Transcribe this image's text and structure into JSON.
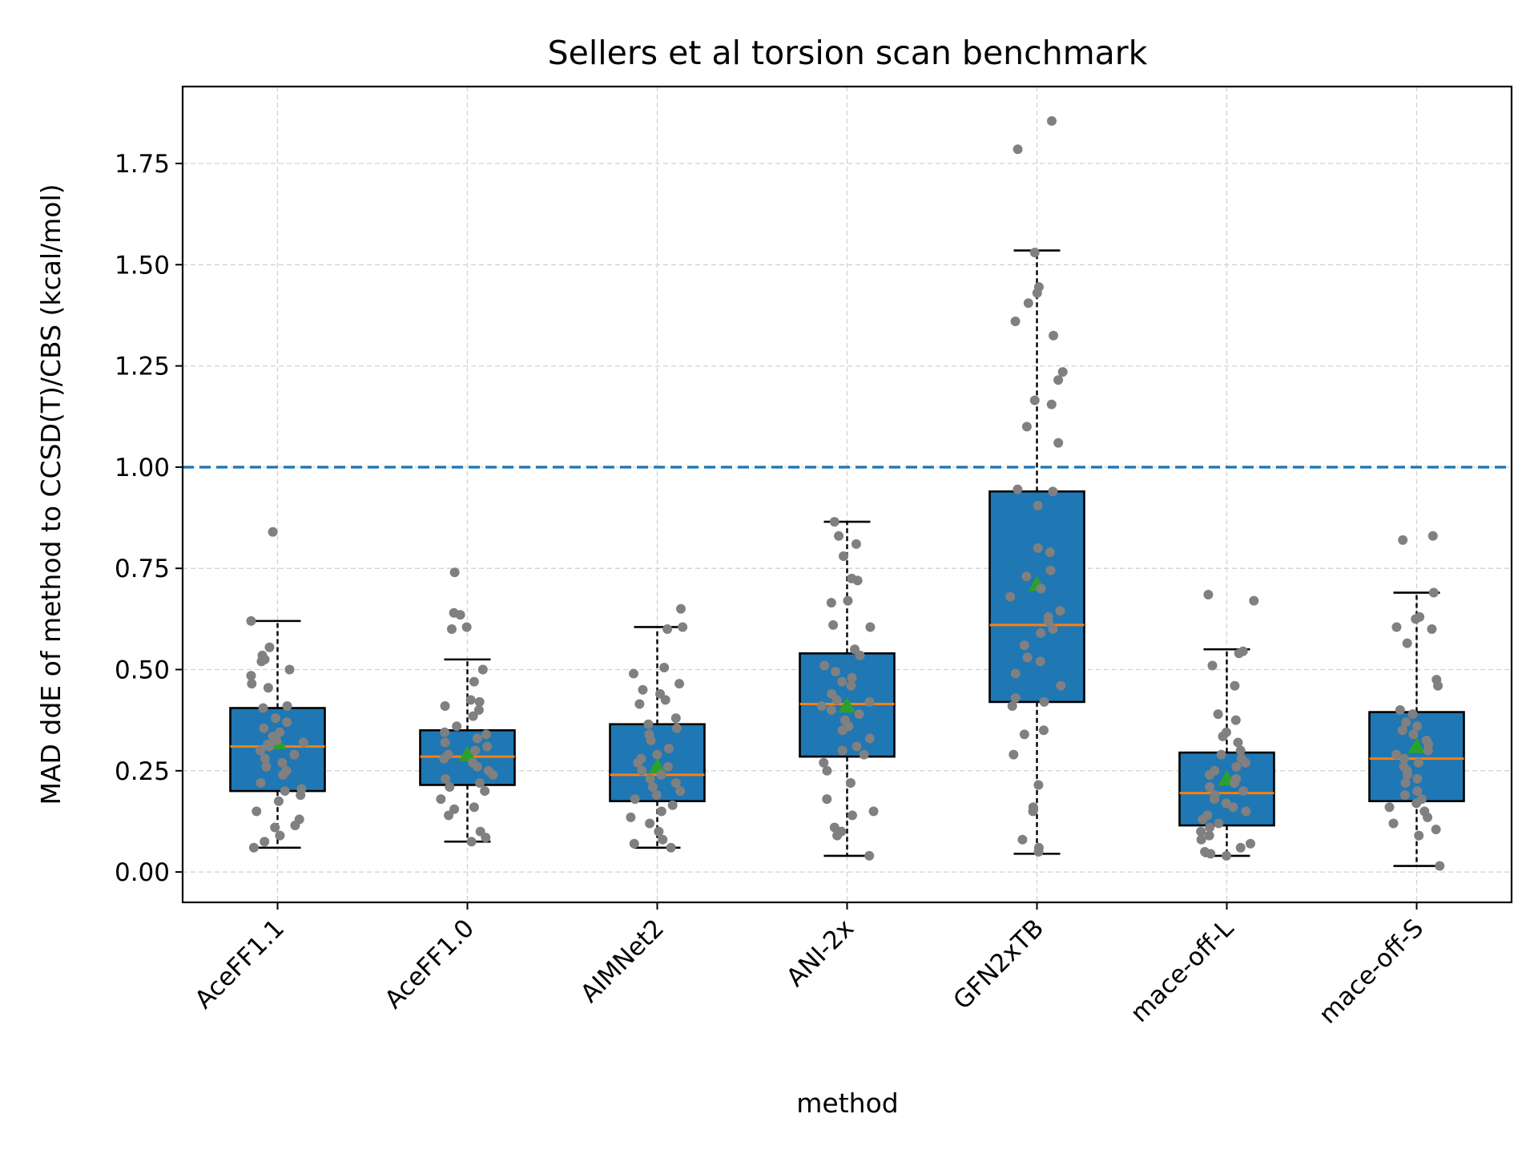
{
  "chart_data": {
    "type": "box",
    "title": "Sellers et al torsion scan benchmark",
    "xlabel": "method",
    "ylabel": "MAD ddE of method to CCSD(T)/CBS (kcal/mol)",
    "ylim": [
      -0.075,
      1.94
    ],
    "yticks": [
      0.0,
      0.25,
      0.5,
      0.75,
      1.0,
      1.25,
      1.5,
      1.75
    ],
    "ytick_labels": [
      "0.00",
      "0.25",
      "0.50",
      "0.75",
      "1.00",
      "1.25",
      "1.50",
      "1.75"
    ],
    "grid": true,
    "reference_line": {
      "y": 1.0,
      "style": "dashed"
    },
    "colors": {
      "box_fill": "#1f77b4",
      "median": "#ff7f0e",
      "mean_marker": "#2ca02c",
      "points": "#808080",
      "reference_line": "#1f77b4"
    },
    "categories": [
      "AceFF1.1",
      "AceFF1.0",
      "AIMNet2",
      "ANI-2x",
      "GFN2xTB",
      "mace-off-L",
      "mace-off-S"
    ],
    "boxes": [
      {
        "whisker_low": 0.06,
        "q1": 0.2,
        "median": 0.31,
        "q3": 0.405,
        "whisker_high": 0.62,
        "mean": 0.32
      },
      {
        "whisker_low": 0.075,
        "q1": 0.215,
        "median": 0.285,
        "q3": 0.35,
        "whisker_high": 0.525,
        "mean": 0.29
      },
      {
        "whisker_low": 0.06,
        "q1": 0.175,
        "median": 0.24,
        "q3": 0.365,
        "whisker_high": 0.605,
        "mean": 0.26
      },
      {
        "whisker_low": 0.04,
        "q1": 0.285,
        "median": 0.415,
        "q3": 0.54,
        "whisker_high": 0.865,
        "mean": 0.41
      },
      {
        "whisker_low": 0.045,
        "q1": 0.42,
        "median": 0.61,
        "q3": 0.94,
        "whisker_high": 1.535,
        "mean": 0.71
      },
      {
        "whisker_low": 0.04,
        "q1": 0.115,
        "median": 0.195,
        "q3": 0.295,
        "whisker_high": 0.55,
        "mean": 0.23
      },
      {
        "whisker_low": 0.015,
        "q1": 0.175,
        "median": 0.28,
        "q3": 0.395,
        "whisker_high": 0.69,
        "mean": 0.31
      }
    ],
    "points": [
      [
        0.84,
        0.62,
        0.555,
        0.535,
        0.525,
        0.52,
        0.5,
        0.485,
        0.465,
        0.455,
        0.41,
        0.405,
        0.38,
        0.37,
        0.355,
        0.345,
        0.335,
        0.325,
        0.32,
        0.315,
        0.31,
        0.3,
        0.29,
        0.28,
        0.27,
        0.26,
        0.25,
        0.24,
        0.22,
        0.205,
        0.2,
        0.19,
        0.175,
        0.15,
        0.13,
        0.115,
        0.11,
        0.09,
        0.075,
        0.06
      ],
      [
        0.74,
        0.64,
        0.635,
        0.605,
        0.6,
        0.5,
        0.47,
        0.425,
        0.42,
        0.41,
        0.4,
        0.385,
        0.36,
        0.345,
        0.34,
        0.33,
        0.32,
        0.31,
        0.3,
        0.29,
        0.28,
        0.27,
        0.26,
        0.25,
        0.24,
        0.23,
        0.22,
        0.21,
        0.2,
        0.18,
        0.16,
        0.155,
        0.14,
        0.1,
        0.085,
        0.075
      ],
      [
        0.65,
        0.605,
        0.6,
        0.505,
        0.49,
        0.465,
        0.45,
        0.44,
        0.425,
        0.415,
        0.38,
        0.365,
        0.355,
        0.34,
        0.325,
        0.305,
        0.29,
        0.28,
        0.27,
        0.26,
        0.25,
        0.24,
        0.23,
        0.22,
        0.21,
        0.2,
        0.19,
        0.18,
        0.165,
        0.15,
        0.135,
        0.12,
        0.1,
        0.08,
        0.07,
        0.06
      ],
      [
        0.865,
        0.83,
        0.81,
        0.78,
        0.725,
        0.72,
        0.67,
        0.665,
        0.61,
        0.605,
        0.55,
        0.535,
        0.51,
        0.495,
        0.48,
        0.47,
        0.46,
        0.44,
        0.425,
        0.42,
        0.41,
        0.4,
        0.39,
        0.375,
        0.36,
        0.35,
        0.33,
        0.31,
        0.3,
        0.29,
        0.27,
        0.25,
        0.22,
        0.18,
        0.15,
        0.14,
        0.11,
        0.1,
        0.09,
        0.04
      ],
      [
        1.855,
        1.785,
        1.53,
        1.445,
        1.43,
        1.405,
        1.36,
        1.325,
        1.235,
        1.215,
        1.165,
        1.155,
        1.1,
        1.06,
        0.945,
        0.94,
        0.905,
        0.8,
        0.79,
        0.745,
        0.73,
        0.7,
        0.68,
        0.645,
        0.63,
        0.62,
        0.6,
        0.59,
        0.56,
        0.53,
        0.52,
        0.49,
        0.46,
        0.43,
        0.42,
        0.41,
        0.35,
        0.34,
        0.29,
        0.215,
        0.16,
        0.15,
        0.08,
        0.06,
        0.05
      ],
      [
        0.685,
        0.67,
        0.545,
        0.54,
        0.51,
        0.46,
        0.39,
        0.375,
        0.345,
        0.335,
        0.32,
        0.3,
        0.29,
        0.28,
        0.27,
        0.26,
        0.25,
        0.24,
        0.23,
        0.22,
        0.21,
        0.2,
        0.19,
        0.18,
        0.17,
        0.16,
        0.15,
        0.14,
        0.13,
        0.12,
        0.11,
        0.1,
        0.09,
        0.08,
        0.07,
        0.06,
        0.05,
        0.045,
        0.04
      ],
      [
        0.83,
        0.82,
        0.69,
        0.63,
        0.625,
        0.605,
        0.6,
        0.565,
        0.475,
        0.46,
        0.4,
        0.39,
        0.37,
        0.36,
        0.35,
        0.34,
        0.325,
        0.315,
        0.3,
        0.29,
        0.28,
        0.27,
        0.26,
        0.25,
        0.24,
        0.23,
        0.22,
        0.2,
        0.19,
        0.18,
        0.17,
        0.16,
        0.15,
        0.135,
        0.12,
        0.105,
        0.09,
        0.015
      ]
    ]
  }
}
